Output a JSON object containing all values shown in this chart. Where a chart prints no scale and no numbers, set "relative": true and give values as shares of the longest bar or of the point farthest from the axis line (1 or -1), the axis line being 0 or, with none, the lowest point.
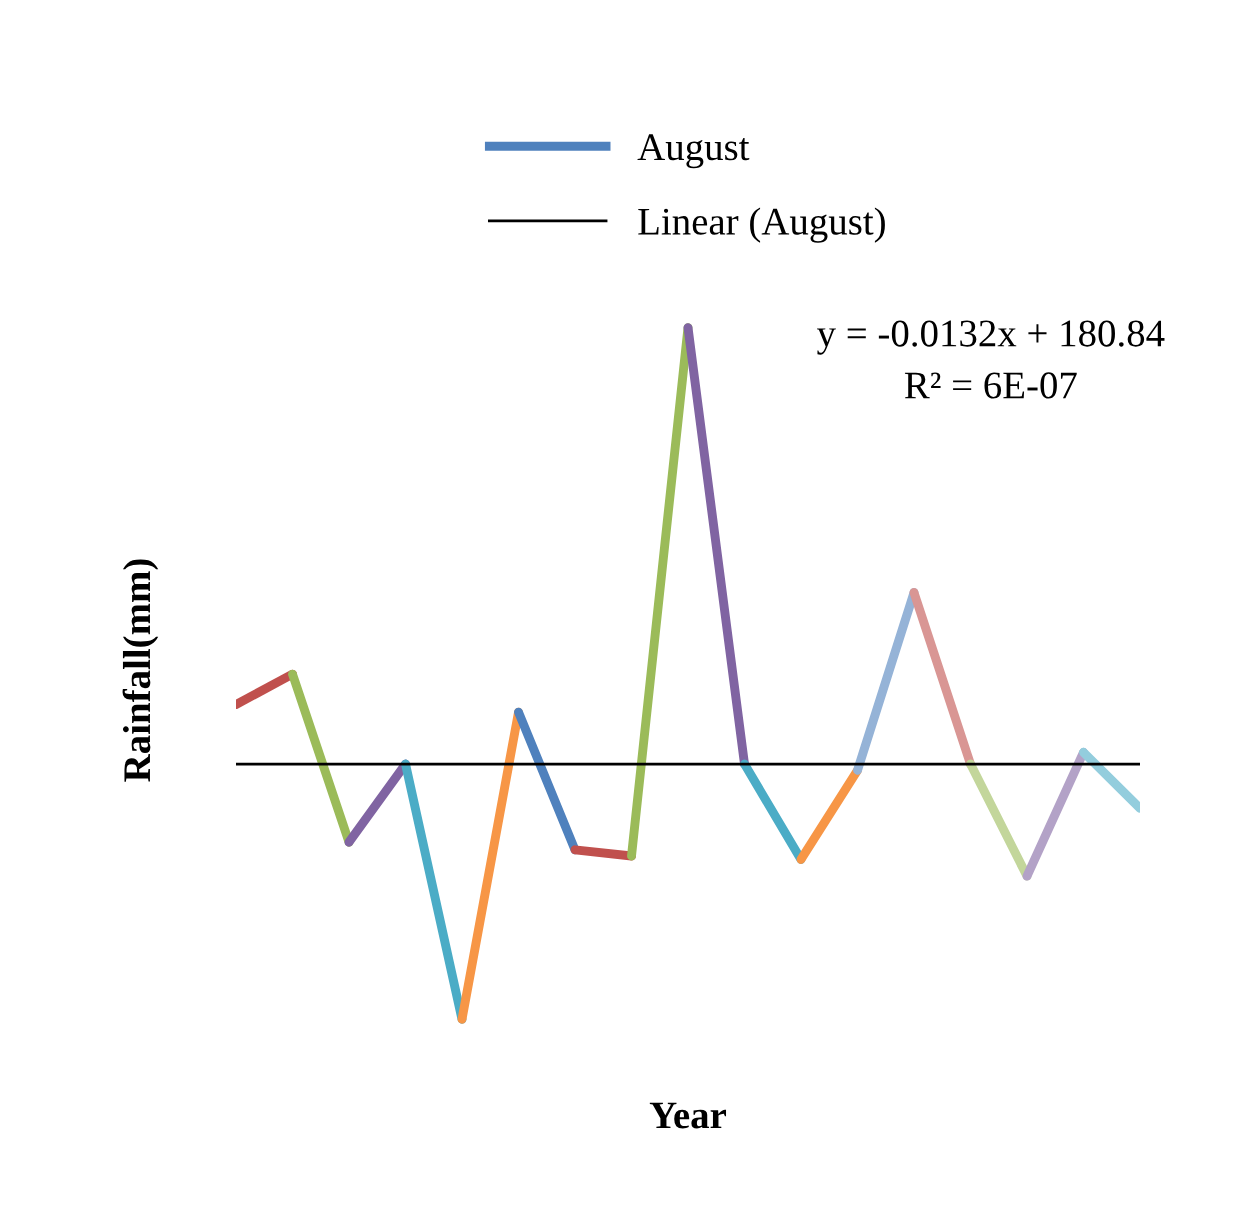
{
  "chart_data": {
    "type": "line",
    "relative": true,
    "xlabel": "Year",
    "ylabel": "Rainfall(mm)",
    "categories": [
      null,
      null,
      null,
      null,
      null,
      null,
      null,
      null,
      null,
      null,
      null,
      null,
      null,
      null,
      null,
      null,
      null
    ],
    "series": [
      {
        "color": "#c0504d",
        "values": [
          0.455,
          0.499,
          null,
          null,
          null,
          null,
          null,
          null,
          null,
          null,
          null,
          null,
          null,
          null,
          null,
          null,
          null
        ]
      },
      {
        "color": "#9bbb59",
        "values": [
          null,
          0.499,
          0.256,
          null,
          null,
          null,
          null,
          null,
          null,
          null,
          null,
          null,
          null,
          null,
          null,
          null,
          null
        ]
      },
      {
        "color": "#8064a2",
        "values": [
          null,
          null,
          0.256,
          0.369,
          null,
          null,
          null,
          null,
          null,
          null,
          null,
          null,
          null,
          null,
          null,
          null,
          null
        ]
      },
      {
        "color": "#4bacc6",
        "values": [
          null,
          null,
          null,
          0.369,
          0,
          null,
          null,
          null,
          null,
          null,
          null,
          null,
          null,
          null,
          null,
          null,
          null
        ]
      },
      {
        "color": "#f79646",
        "values": [
          null,
          null,
          null,
          null,
          0,
          0.444,
          null,
          null,
          null,
          null,
          null,
          null,
          null,
          null,
          null,
          null,
          null
        ]
      },
      {
        "name": "August",
        "color": "#4f81bd",
        "values": [
          null,
          null,
          null,
          null,
          null,
          0.444,
          0.245,
          null,
          null,
          null,
          null,
          null,
          null,
          null,
          null,
          null,
          null
        ]
      },
      {
        "color": "#c0504d",
        "values": [
          null,
          null,
          null,
          null,
          null,
          null,
          0.245,
          0.236,
          null,
          null,
          null,
          null,
          null,
          null,
          null,
          null,
          null
        ]
      },
      {
        "color": "#9bbb59",
        "values": [
          null,
          null,
          null,
          null,
          null,
          null,
          null,
          0.236,
          1,
          null,
          null,
          null,
          null,
          null,
          null,
          null,
          null
        ]
      },
      {
        "color": "#8064a2",
        "values": [
          null,
          null,
          null,
          null,
          null,
          null,
          null,
          null,
          1,
          0.369,
          null,
          null,
          null,
          null,
          null,
          null,
          null
        ]
      },
      {
        "color": "#4bacc6",
        "values": [
          null,
          null,
          null,
          null,
          null,
          null,
          null,
          null,
          null,
          0.369,
          0.231,
          null,
          null,
          null,
          null,
          null,
          null
        ]
      },
      {
        "color": "#f79646",
        "values": [
          null,
          null,
          null,
          null,
          null,
          null,
          null,
          null,
          null,
          null,
          0.231,
          0.36,
          null,
          null,
          null,
          null,
          null
        ]
      },
      {
        "color": "#95b3d7",
        "values": [
          null,
          null,
          null,
          null,
          null,
          null,
          null,
          null,
          null,
          null,
          null,
          0.36,
          0.617,
          null,
          null,
          null,
          null
        ]
      },
      {
        "color": "#d99694",
        "values": [
          null,
          null,
          null,
          null,
          null,
          null,
          null,
          null,
          null,
          null,
          null,
          null,
          0.617,
          0.369,
          null,
          null,
          null
        ]
      },
      {
        "color": "#c3d69b",
        "values": [
          null,
          null,
          null,
          null,
          null,
          null,
          null,
          null,
          null,
          null,
          null,
          null,
          null,
          0.369,
          0.207,
          null,
          null
        ]
      },
      {
        "color": "#b3a2c7",
        "values": [
          null,
          null,
          null,
          null,
          null,
          null,
          null,
          null,
          null,
          null,
          null,
          null,
          null,
          null,
          0.207,
          0.386,
          null
        ]
      },
      {
        "color": "#93cddd",
        "values": [
          null,
          null,
          null,
          null,
          null,
          null,
          null,
          null,
          null,
          null,
          null,
          null,
          null,
          null,
          null,
          0.386,
          0.305
        ]
      },
      {
        "name": "Linear (August)",
        "color": "#000000",
        "values": [
          0.369,
          0.369,
          0.369,
          0.369,
          0.369,
          0.369,
          0.369,
          0.369,
          0.369,
          0.369,
          0.369,
          0.369,
          0.369,
          0.369,
          0.369,
          0.369,
          0.369
        ]
      }
    ],
    "annotations": [
      "y = -0.0132x + 180.84",
      "R² = 6E-07"
    ],
    "legend": "top",
    "grid": false,
    "tick_labels": false
  }
}
